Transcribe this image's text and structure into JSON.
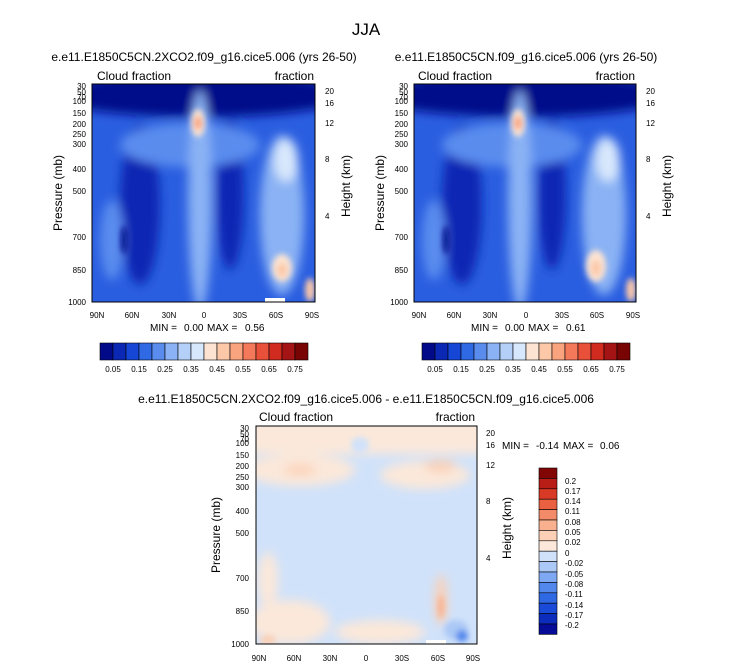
{
  "figure": {
    "title": "JJA"
  },
  "colors": {
    "cool": [
      "#020a8a",
      "#0a28b4",
      "#1546d6",
      "#2f6ae4",
      "#5a8cee",
      "#8ab2f4",
      "#b4d0f8",
      "#d8e8fc"
    ],
    "warm": [
      "#fde4d2",
      "#fcc8a8",
      "#f9a47e",
      "#f4785a",
      "#e9503a",
      "#d12a1e",
      "#a51414",
      "#780404"
    ],
    "diff": [
      "#060c98",
      "#0c2cbc",
      "#1a4ad8",
      "#2e68e2",
      "#5288ec",
      "#7ea8f2",
      "#abc8f6",
      "#d0e2fa",
      "#fbe8da",
      "#fbd0b6",
      "#f8b08e",
      "#f38a68",
      "#ea6040",
      "#d93a26",
      "#b81e16",
      "#820606"
    ]
  },
  "chart_data": [
    {
      "type": "heatmap",
      "title": "e.e11.E1850C5CN.2XCO2.f09_g16.cice5.006 (yrs 26-50)",
      "left_label": "Cloud fraction",
      "right_label": "fraction",
      "ylabel": "Pressure (mb)",
      "y2label": "Height (km)",
      "xticks": [
        "90N",
        "60N",
        "30N",
        "0",
        "30S",
        "60S",
        "90S"
      ],
      "yticks": [
        "30",
        "50",
        "70",
        "100",
        "150",
        "200",
        "250",
        "300",
        "400",
        "500",
        "700",
        "850",
        "1000"
      ],
      "y2ticks": [
        "20",
        "16",
        "12",
        "8",
        "4"
      ],
      "stats": {
        "min_label": "MIN =",
        "min": "0.00",
        "max_label": "MAX =",
        "max": "0.56"
      },
      "colorbar_labels": [
        "0.05",
        "0.15",
        "0.25",
        "0.35",
        "0.45",
        "0.55",
        "0.65",
        "0.75"
      ]
    },
    {
      "type": "heatmap",
      "title": "e.e11.E1850C5CN.f09_g16.cice5.006 (yrs 26-50)",
      "left_label": "Cloud fraction",
      "right_label": "fraction",
      "ylabel": "Pressure (mb)",
      "y2label": "Height (km)",
      "xticks": [
        "90N",
        "60N",
        "30N",
        "0",
        "30S",
        "60S",
        "90S"
      ],
      "yticks": [
        "30",
        "50",
        "70",
        "100",
        "150",
        "200",
        "250",
        "300",
        "400",
        "500",
        "700",
        "850",
        "1000"
      ],
      "y2ticks": [
        "20",
        "16",
        "12",
        "8",
        "4"
      ],
      "stats": {
        "min_label": "MIN =",
        "min": "0.00",
        "max_label": "MAX =",
        "max": "0.61"
      },
      "colorbar_labels": [
        "0.05",
        "0.15",
        "0.25",
        "0.35",
        "0.45",
        "0.55",
        "0.65",
        "0.75"
      ]
    },
    {
      "type": "heatmap",
      "title": "e.e11.E1850C5CN.2XCO2.f09_g16.cice5.006 - e.e11.E1850C5CN.f09_g16.cice5.006",
      "left_label": "Cloud fraction",
      "right_label": "fraction",
      "ylabel": "Pressure (mb)",
      "y2label": "Height (km)",
      "xticks": [
        "90N",
        "60N",
        "30N",
        "0",
        "30S",
        "60S",
        "90S"
      ],
      "yticks": [
        "30",
        "50",
        "70",
        "100",
        "150",
        "200",
        "250",
        "300",
        "400",
        "500",
        "700",
        "850",
        "1000"
      ],
      "y2ticks": [
        "20",
        "16",
        "12",
        "8",
        "4"
      ],
      "stats": {
        "min_label": "MIN =",
        "min": "-0.14",
        "max_label": "MAX =",
        "max": "0.06"
      },
      "colorbar_labels": [
        "0.2",
        "0.17",
        "0.14",
        "0.11",
        "0.08",
        "0.05",
        "0.02",
        "0",
        "-0.02",
        "-0.05",
        "-0.08",
        "-0.11",
        "-0.14",
        "-0.17",
        "-0.2"
      ]
    }
  ]
}
